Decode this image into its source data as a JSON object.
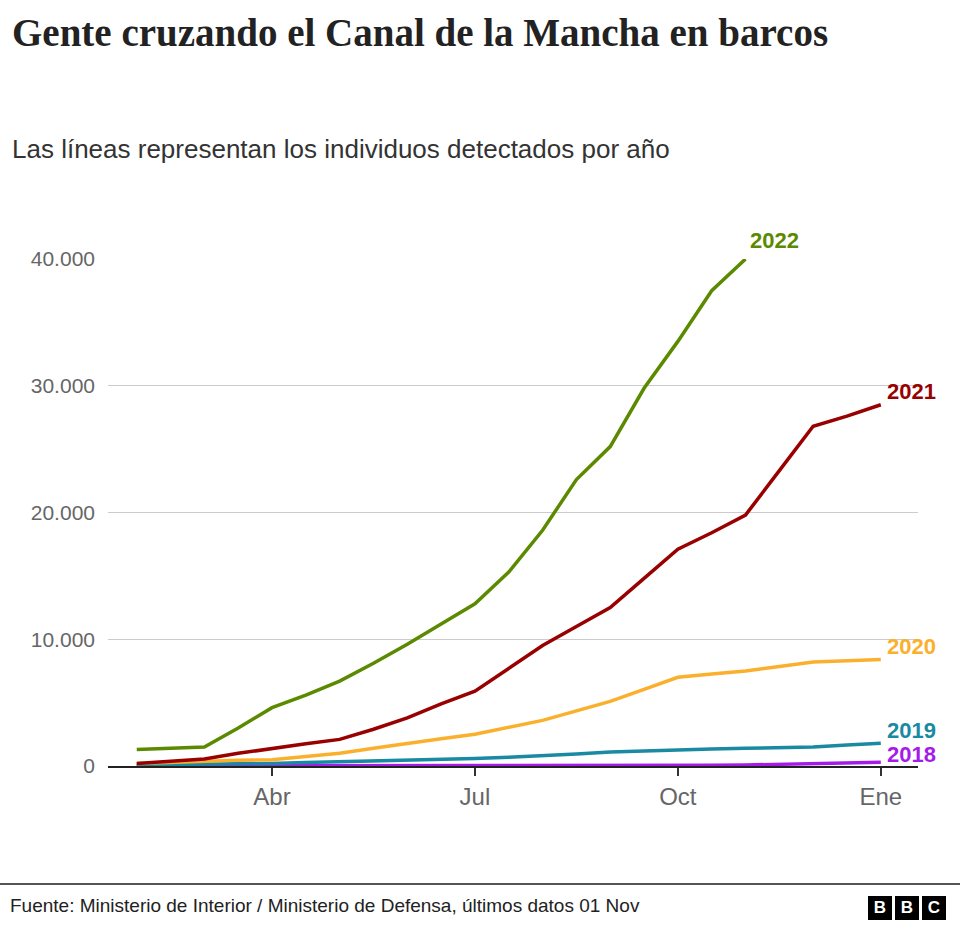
{
  "chart_data": {
    "type": "line",
    "title": "Gente cruzando el Canal de la Mancha en barcos",
    "subtitle": "Las líneas representan los individuos detectados por año",
    "source": "Fuente: Ministerio de Interior / Ministerio de Defensa, últimos datos 01 Nov",
    "logo": "BBC",
    "categories": [
      null,
      null,
      null,
      null,
      "Abr",
      null,
      null,
      null,
      null,
      null,
      "Jul",
      null,
      null,
      null,
      null,
      null,
      "Oct",
      null,
      null,
      null,
      null,
      null,
      "Ene"
    ],
    "series": [
      {
        "name": "2022",
        "color": "#5b8a00",
        "values": [
          1300,
          1400,
          1500,
          3000,
          4600,
          5600,
          6700,
          8100,
          9600,
          11200,
          12800,
          15300,
          18600,
          22600,
          25200,
          29800,
          33500,
          37500,
          40000,
          null,
          null,
          null,
          null
        ]
      },
      {
        "name": "2021",
        "color": "#990000",
        "values": [
          200,
          380,
          550,
          1000,
          1400,
          1750,
          2100,
          2900,
          3800,
          4900,
          5900,
          7700,
          9500,
          11000,
          12500,
          14800,
          17100,
          18400,
          19800,
          23300,
          26800,
          27600,
          28500
        ]
      },
      {
        "name": "2020",
        "color": "#fbb02d",
        "values": [
          200,
          300,
          400,
          450,
          500,
          750,
          1000,
          1400,
          1800,
          2150,
          2500,
          3050,
          3600,
          4350,
          5100,
          6050,
          7000,
          7250,
          7500,
          7850,
          8200,
          8300,
          8400
        ]
      },
      {
        "name": "2019",
        "color": "#1a8aa2",
        "values": [
          100,
          120,
          150,
          180,
          200,
          270,
          330,
          400,
          470,
          530,
          600,
          700,
          800,
          950,
          1100,
          1200,
          1300,
          1350,
          1400,
          1450,
          1500,
          1650,
          1800
        ]
      },
      {
        "name": "2018",
        "color": "#a51bea",
        "values": [
          0,
          0,
          0,
          0,
          0,
          0,
          0,
          0,
          0,
          0,
          0,
          0,
          0,
          0,
          0,
          20,
          30,
          50,
          80,
          120,
          180,
          240,
          300
        ]
      }
    ],
    "ylim": [
      0,
      40000
    ],
    "yticks": [
      0,
      {
        "value": 10000,
        "label": "10.000"
      },
      {
        "value": 20000,
        "label": "20.000"
      },
      {
        "value": 30000,
        "label": "30.000"
      },
      {
        "value": 40000,
        "label": "40.000"
      }
    ],
    "grid": true
  }
}
